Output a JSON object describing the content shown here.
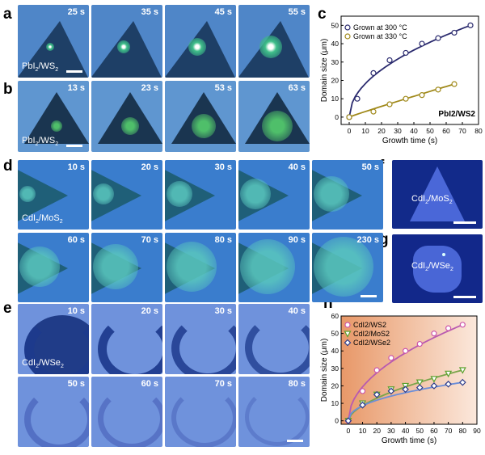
{
  "panels": {
    "a": {
      "label": "a",
      "caption": "PbI",
      "caption_sub": "2",
      "caption_tail": "/WS",
      "caption_sub2": "2",
      "times": [
        "25 s",
        "35 s",
        "45 s",
        "55 s"
      ]
    },
    "b": {
      "label": "b",
      "caption": "PbI",
      "caption_sub": "2",
      "caption_tail": "/WS",
      "caption_sub2": "2",
      "times": [
        "13 s",
        "23 s",
        "53 s",
        "63 s"
      ]
    },
    "d": {
      "label": "d",
      "caption": "CdI",
      "caption_sub": "2",
      "caption_tail": "/MoS",
      "caption_sub2": "2",
      "times": [
        "10 s",
        "20 s",
        "30 s",
        "40 s",
        "50 s",
        "60 s",
        "70 s",
        "80 s",
        "90 s",
        "230 s"
      ]
    },
    "e": {
      "label": "e",
      "caption": "CdI",
      "caption_sub": "2",
      "caption_tail": "/WSe",
      "caption_sub2": "2",
      "times": [
        "10 s",
        "20 s",
        "30 s",
        "40 s",
        "50 s",
        "60 s",
        "70 s",
        "80 s"
      ]
    },
    "f": {
      "label": "f",
      "caption": "CdI",
      "caption_sub": "2",
      "caption_tail": "/MoS",
      "caption_sub2": "2"
    },
    "g": {
      "label": "g",
      "caption": "CdI",
      "caption_sub": "2",
      "caption_tail": "/WSe",
      "caption_sub2": "2"
    }
  },
  "chart_data": [
    {
      "panel": "c",
      "type": "scatter",
      "xlabel": "Growth time (s)",
      "ylabel": "Domain size (μm)",
      "xlim": [
        -5,
        80
      ],
      "ylim": [
        -4,
        55
      ],
      "xticks": [
        0,
        10,
        20,
        30,
        40,
        50,
        60,
        70,
        80
      ],
      "yticks": [
        0,
        10,
        20,
        30,
        40,
        50
      ],
      "annotation": "PbI2/WS2",
      "series": [
        {
          "name": "Grown at 300 °C",
          "marker": "circle",
          "color": "#2a2a6e",
          "x": [
            0,
            5,
            15,
            25,
            35,
            45,
            55,
            65,
            75
          ],
          "y": [
            0,
            10,
            24,
            31,
            35,
            40,
            43,
            46,
            50
          ]
        },
        {
          "name": "Grown at 330 °C",
          "marker": "circle",
          "color": "#a0891a",
          "x": [
            0,
            15,
            25,
            35,
            45,
            55,
            65
          ],
          "y": [
            0,
            3,
            7,
            10,
            12,
            15,
            18
          ]
        }
      ]
    },
    {
      "panel": "h",
      "type": "scatter",
      "xlabel": "Growth time (s)",
      "ylabel": "Domain size (μm)",
      "xlim": [
        -5,
        90
      ],
      "ylim": [
        -2,
        60
      ],
      "xticks": [
        0,
        10,
        20,
        30,
        40,
        50,
        60,
        70,
        80,
        90
      ],
      "yticks": [
        0,
        10,
        20,
        30,
        40,
        50,
        60
      ],
      "series": [
        {
          "name": "CdI2/WS2",
          "marker": "circle",
          "color": "#cc55aa",
          "x": [
            0,
            10,
            20,
            30,
            40,
            50,
            60,
            70,
            80
          ],
          "y": [
            0,
            17,
            29,
            36,
            40,
            44,
            50,
            53,
            55
          ]
        },
        {
          "name": "CdI2/MoS2",
          "marker": "triangle-down",
          "color": "#5aa02c",
          "x": [
            0,
            10,
            20,
            30,
            40,
            50,
            60,
            70,
            80
          ],
          "y": [
            0,
            10,
            15,
            18,
            20,
            22,
            24,
            27,
            29
          ]
        },
        {
          "name": "CdI2/WSe2",
          "marker": "diamond",
          "color": "#2a3a8a",
          "x": [
            0,
            10,
            20,
            30,
            40,
            50,
            60,
            70,
            80
          ],
          "y": [
            0,
            9,
            15,
            17,
            18,
            19,
            20,
            21,
            22
          ]
        }
      ]
    }
  ]
}
